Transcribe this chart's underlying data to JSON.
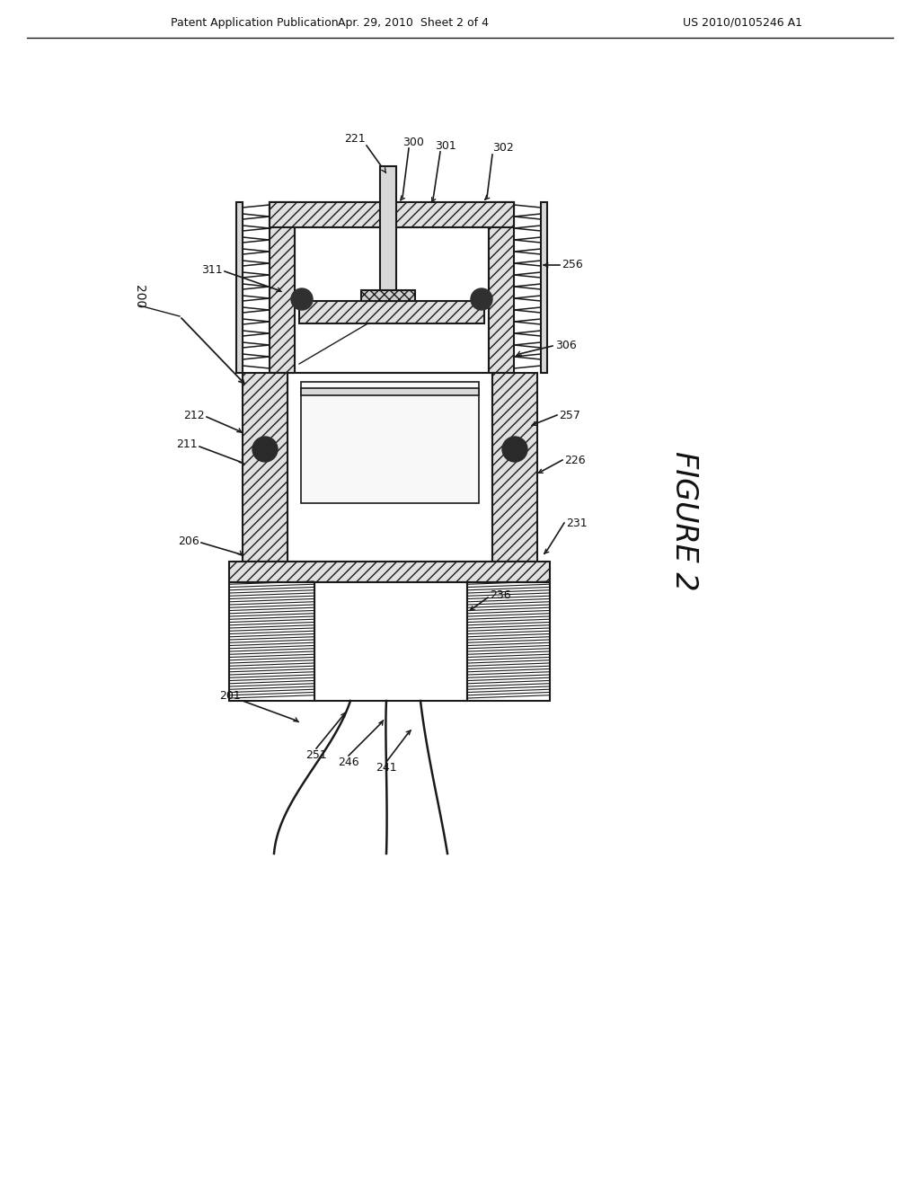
{
  "bg_color": "#ffffff",
  "lc": "#1a1a1a",
  "header_left": "Patent Application Publication",
  "header_mid": "Apr. 29, 2010  Sheet 2 of 4",
  "header_right": "US 2010/0105246 A1",
  "figure_label": "FIGURE 2",
  "labels": [
    "200",
    "221",
    "300",
    "301",
    "302",
    "256",
    "306",
    "311",
    "212",
    "211",
    "226",
    "257",
    "231",
    "206",
    "236",
    "251",
    "246",
    "241",
    "201"
  ]
}
